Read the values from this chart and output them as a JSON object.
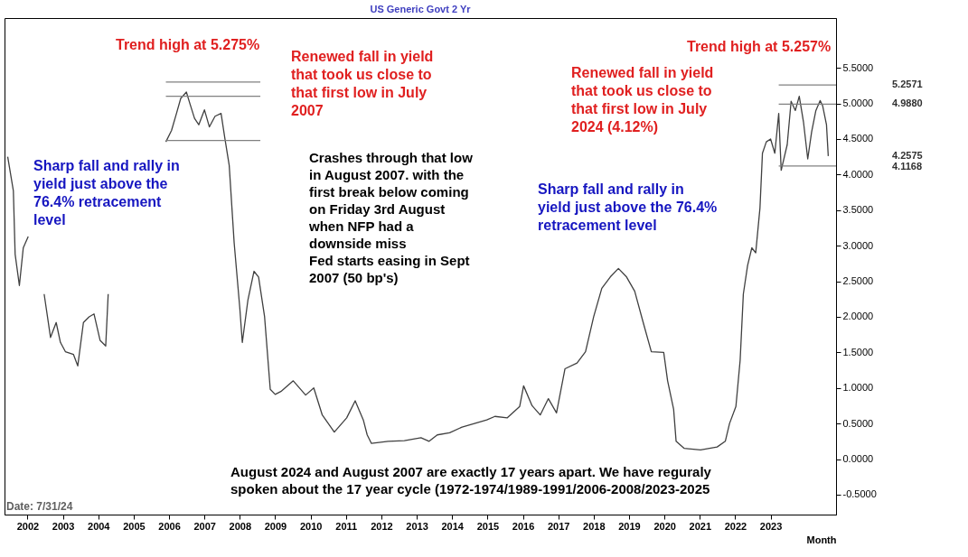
{
  "chart_data": {
    "type": "line",
    "title": "US Generic Govt 2 Yr",
    "xlabel": "Month",
    "xlim": [
      2001.35,
      2024.85
    ],
    "ylim": [
      -0.78,
      6.2
    ],
    "xticks": [
      2002,
      2003,
      2004,
      2005,
      2006,
      2007,
      2008,
      2009,
      2010,
      2011,
      2012,
      2013,
      2014,
      2015,
      2016,
      2017,
      2018,
      2019,
      2020,
      2021,
      2022,
      2023
    ],
    "yticks": [
      {
        "value": -0.5,
        "label": "-0.5000"
      },
      {
        "value": 0,
        "label": "0.0000"
      },
      {
        "value": 0.5,
        "label": "0.5000"
      },
      {
        "value": 1,
        "label": "1.0000"
      },
      {
        "value": 1.5,
        "label": "1.5000"
      },
      {
        "value": 2,
        "label": "2.0000"
      },
      {
        "value": 2.5,
        "label": "2.5000"
      },
      {
        "value": 3,
        "label": "3.0000"
      },
      {
        "value": 3.5,
        "label": "3.5000"
      },
      {
        "value": 4,
        "label": "4.0000"
      },
      {
        "value": 4.5,
        "label": "4.5000"
      },
      {
        "value": 5,
        "label": "5.0000"
      },
      {
        "value": 5.5,
        "label": "5.5000"
      }
    ],
    "series": [
      {
        "color": "#404040",
        "x": [
          2001.44,
          2001.6,
          2001.65,
          2001.77,
          2001.88,
          2002.02,
          2002.2,
          2002.47,
          2002.65,
          2002.81,
          2002.93,
          2003.07,
          2003.3,
          2003.42,
          2003.58,
          2003.74,
          2003.88,
          2004.05,
          2004.21,
          2004.28,
          2005.1,
          2005.91,
          2006.07,
          2006.21,
          2006.33,
          2006.49,
          2006.6,
          2006.72,
          2006.84,
          2007.0,
          2007.14,
          2007.3,
          2007.47,
          2007.58,
          2007.7,
          2007.84,
          2008.0,
          2008.07,
          2008.23,
          2008.4,
          2008.53,
          2008.7,
          2008.86,
          2009.0,
          2009.16,
          2009.51,
          2009.86,
          2010.09,
          2010.33,
          2010.67,
          2011.02,
          2011.26,
          2011.49,
          2011.6,
          2011.72,
          2012.19,
          2012.65,
          2013.12,
          2013.35,
          2013.58,
          2013.93,
          2014.28,
          2014.63,
          2014.98,
          2015.21,
          2015.56,
          2015.91,
          2016.02,
          2016.26,
          2016.49,
          2016.72,
          2016.95,
          2017.19,
          2017.53,
          2017.77,
          2018.0,
          2018.23,
          2018.47,
          2018.7,
          2018.93,
          2019.16,
          2019.4,
          2019.63,
          2019.98,
          2020.09,
          2020.26,
          2020.33,
          2020.56,
          2021.02,
          2021.49,
          2021.72,
          2021.84,
          2022.02,
          2022.14,
          2022.23,
          2022.35,
          2022.47,
          2022.58,
          2022.7,
          2022.77,
          2022.88,
          2023.0,
          2023.12,
          2023.23,
          2023.3,
          2023.47,
          2023.58,
          2023.7,
          2023.81,
          2023.93,
          2024.05,
          2024.16,
          2024.28,
          2024.4,
          2024.47,
          2024.58,
          2024.63
        ],
        "values": [
          4.25,
          3.77,
          2.88,
          2.44,
          2.97,
          3.13,
          null,
          2.32,
          1.71,
          1.92,
          1.64,
          1.51,
          1.47,
          1.31,
          1.92,
          2.0,
          2.04,
          1.67,
          1.59,
          2.32,
          null,
          4.46,
          4.62,
          4.86,
          5.07,
          5.16,
          4.98,
          4.79,
          4.7,
          4.91,
          4.67,
          4.82,
          4.86,
          4.5,
          4.13,
          3.04,
          2.12,
          1.64,
          2.24,
          2.64,
          2.56,
          2.0,
          0.98,
          0.91,
          0.95,
          1.1,
          0.9,
          1.0,
          0.62,
          0.38,
          0.58,
          0.82,
          0.55,
          0.34,
          0.22,
          0.25,
          0.26,
          0.3,
          0.25,
          0.34,
          0.37,
          0.45,
          0.5,
          0.55,
          0.6,
          0.58,
          0.74,
          1.03,
          0.75,
          0.62,
          0.85,
          0.65,
          1.27,
          1.35,
          1.51,
          2.0,
          2.4,
          2.56,
          2.68,
          2.56,
          2.36,
          1.92,
          1.51,
          1.5,
          1.1,
          0.7,
          0.25,
          0.15,
          0.13,
          0.17,
          0.25,
          0.5,
          0.74,
          1.39,
          2.32,
          2.72,
          2.97,
          2.9,
          3.53,
          4.3,
          4.46,
          4.5,
          4.3,
          4.86,
          4.06,
          4.42,
          5.03,
          4.9,
          5.1,
          4.74,
          4.22,
          4.6,
          4.9,
          5.04,
          4.97,
          4.7,
          4.26
        ]
      },
      {
        "type": "line",
        "color": "#808080",
        "x": [
          2005.91,
          2008.58
        ],
        "values": [
          5.3,
          5.3
        ]
      },
      {
        "type": "line",
        "color": "#808080",
        "x": [
          2005.91,
          2008.58
        ],
        "values": [
          5.1,
          5.1
        ]
      },
      {
        "type": "line",
        "color": "#808080",
        "x": [
          2005.91,
          2008.58
        ],
        "values": [
          4.48,
          4.48
        ]
      },
      {
        "type": "line",
        "color": "#808080",
        "x": [
          2023.23,
          2024.85
        ],
        "values": [
          5.26,
          5.26
        ]
      },
      {
        "type": "line",
        "color": "#808080",
        "x": [
          2023.23,
          2024.85
        ],
        "values": [
          4.99,
          4.99
        ]
      },
      {
        "type": "line",
        "color": "#808080",
        "x": [
          2023.23,
          2024.85
        ],
        "values": [
          4.12,
          4.12
        ]
      }
    ],
    "annotations": [
      "Trend high at 5.275%",
      "Renewed fall in yield\nthat took us close to\nthat first low in July\n2007",
      "Sharp fall and rally in\nyield just above the\n76.4% retracement\nlevel",
      "Crashes through that low\nin August 2007. with the\nfirst break below coming\non Friday 3rd August\nwhen NFP had a\ndownside miss\nFed starts easing in Sept\n2007 (50 bp's)",
      "Trend high at 5.257%",
      "Renewed fall in yield\nthat took us close to\nthat  first low in July\n2024 (4.12%)",
      "Sharp fall and rally in\nyield just above the 76.4%\nretracement level",
      "August 2024 and August 2007 are exactly 17 years apart. We have reguraly\nspoken about the 17 year cycle (1972-1974/1989-1991/2006-2008/2023-2025",
      "Date:   7/31/24",
      "5.2571",
      "4.9880",
      "4.2575",
      "4.1168"
    ]
  }
}
